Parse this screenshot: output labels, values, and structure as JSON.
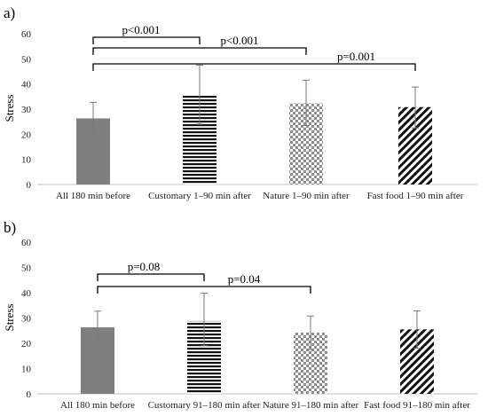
{
  "chart_data": [
    {
      "type": "bar",
      "panel_label": "a)",
      "ylabel": "Stress",
      "ylim": [
        0,
        60
      ],
      "yticks": [
        0,
        10,
        20,
        30,
        40,
        50,
        60
      ],
      "grid": false,
      "categories": [
        "All 180 min before",
        "Customary 1–90 min after",
        "Nature 1–90 min after",
        "Fast food 1–90 min after"
      ],
      "values": [
        26.3,
        35.8,
        32.3,
        30.8
      ],
      "error_low": [
        20.0,
        24.0,
        23.5,
        22.5
      ],
      "error_high": [
        32.7,
        47.5,
        41.5,
        38.8
      ],
      "patterns": [
        "solid-gray",
        "horizontal-stripes",
        "checkerboard",
        "diagonal-stripes"
      ],
      "comparisons": [
        {
          "from": 0,
          "to": 1,
          "label": "p<0.001"
        },
        {
          "from": 0,
          "to": 2,
          "label": "p<0.001"
        },
        {
          "from": 0,
          "to": 3,
          "label": "p=0.001"
        }
      ]
    },
    {
      "type": "bar",
      "panel_label": "b)",
      "ylabel": "Stress",
      "ylim": [
        0,
        60
      ],
      "yticks": [
        0,
        10,
        20,
        30,
        40,
        50,
        60
      ],
      "grid": false,
      "categories": [
        "All 180 min before",
        "Customary 91–180 min after",
        "Nature 91–180 min after",
        "Fast food 91–180 min after"
      ],
      "values": [
        26.3,
        28.8,
        24.2,
        25.5
      ],
      "error_low": [
        20.0,
        19.0,
        17.5,
        18.0
      ],
      "error_high": [
        32.7,
        39.8,
        30.8,
        32.8
      ],
      "patterns": [
        "solid-gray",
        "horizontal-stripes",
        "checkerboard",
        "diagonal-stripes"
      ],
      "comparisons": [
        {
          "from": 0,
          "to": 1,
          "label": "p=0.08"
        },
        {
          "from": 0,
          "to": 2,
          "label": "p=0.04"
        }
      ]
    }
  ],
  "colors": {
    "solid_bar": "#7f7f7f",
    "pattern_ink": "#111111",
    "axis": "#bfbfbf",
    "error_bar": "#7a7a7a",
    "bracket": "#000000"
  }
}
